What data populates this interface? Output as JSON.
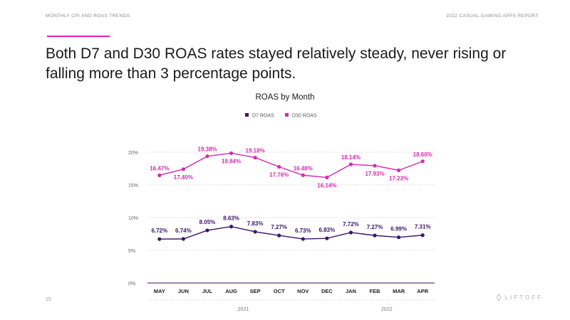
{
  "header": {
    "left": "MONTHLY CPI AND ROAS TRENDS",
    "right": "2022 CASUAL GAMING APPS REPORT"
  },
  "headline": "Both D7 and D30 ROAS rates stayed relatively steady, never rising or falling more than 3 percentage points.",
  "page_number": "15",
  "logo": {
    "text": "LIFTOFF",
    "icon": "liftoff-logo-icon"
  },
  "colors": {
    "accent": "#e81fbe",
    "d7": "#3d1566",
    "d30": "#d42bb0",
    "grid": "#cfcfcf"
  },
  "chart_data": {
    "type": "line",
    "title": "ROAS by Month",
    "categories": [
      "MAY",
      "JUN",
      "JUL",
      "AUG",
      "SEP",
      "OCT",
      "NOV",
      "DEC",
      "JAN",
      "FEB",
      "MAR",
      "APR"
    ],
    "year_labels": [
      "2021",
      "2022"
    ],
    "y_ticks": [
      "0%",
      "5%",
      "10%",
      "15%",
      "20%"
    ],
    "ylim": [
      0,
      20
    ],
    "legend_position": "top-center",
    "series": [
      {
        "name": "D7 ROAS",
        "color": "#3d1566",
        "values": [
          6.72,
          6.74,
          8.05,
          8.63,
          7.83,
          7.27,
          6.73,
          6.83,
          7.72,
          7.27,
          6.99,
          7.31
        ],
        "labels": [
          "6.72%",
          "6.74%",
          "8.05%",
          "8.63%",
          "7.83%",
          "7.27%",
          "6.73%",
          "6.83%",
          "7.72%",
          "7.27%",
          "6.99%",
          "7.31%"
        ]
      },
      {
        "name": "D30 ROAS",
        "color": "#d42bb0",
        "values": [
          16.47,
          17.4,
          19.38,
          19.84,
          19.18,
          17.76,
          16.48,
          16.14,
          18.14,
          17.93,
          17.23,
          18.6
        ],
        "labels": [
          "16.47%",
          "17.40%",
          "19.38%",
          "19.84%",
          "19.18%",
          "17.76%",
          "16.48%",
          "16.14%",
          "18.14%",
          "17.93%",
          "17.23%",
          "18.60%"
        ]
      }
    ]
  }
}
